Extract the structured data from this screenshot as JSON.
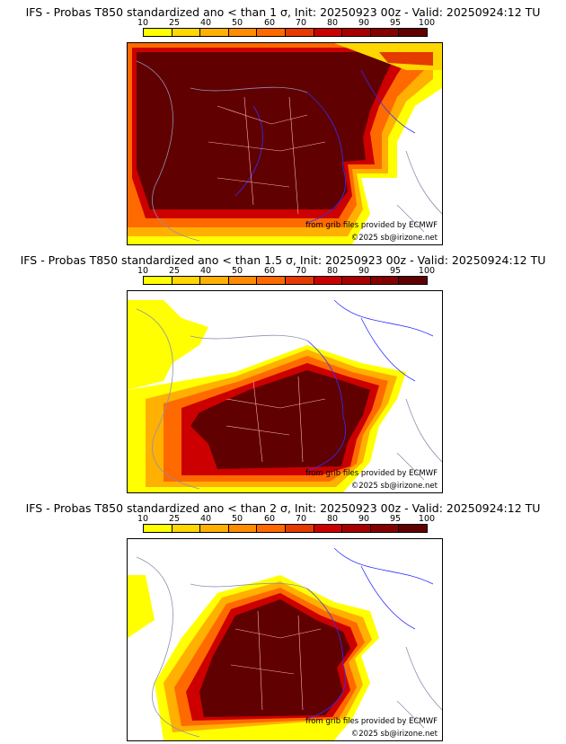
{
  "colors": {
    "scale": [
      "#ffff00",
      "#ffd700",
      "#ffb000",
      "#ff8c00",
      "#ff6a00",
      "#e53a00",
      "#cc0000",
      "#a80000",
      "#850000",
      "#600000"
    ],
    "sea_stroke": "#9090b0",
    "border_line": "#3030ff",
    "region_line": "#ffb0b0"
  },
  "scale": {
    "labels": [
      "10",
      "25",
      "40",
      "50",
      "60",
      "70",
      "80",
      "90",
      "95",
      "100"
    ]
  },
  "panels": [
    {
      "title": "IFS - Probas T850  standardized ano < than 1 σ, Init: 20250923 00z - Valid: 20250924:12 TU",
      "provider": "from grib files provided by ECMWF",
      "copyright": "©2025 sb@irizone.net"
    },
    {
      "title": "IFS - Probas T850  standardized ano < than 1.5 σ, Init: 20250923 00z - Valid: 20250924:12 TU",
      "provider": "from grib files provided by ECMWF",
      "copyright": "©2025 sb@irizone.net"
    },
    {
      "title": "IFS - Probas T850  standardized ano < than 2 σ, Init: 20250923 00z - Valid: 20250924:12 TU",
      "provider": "from grib files provided by ECMWF",
      "copyright": "©2025 sb@irizone.net"
    }
  ]
}
